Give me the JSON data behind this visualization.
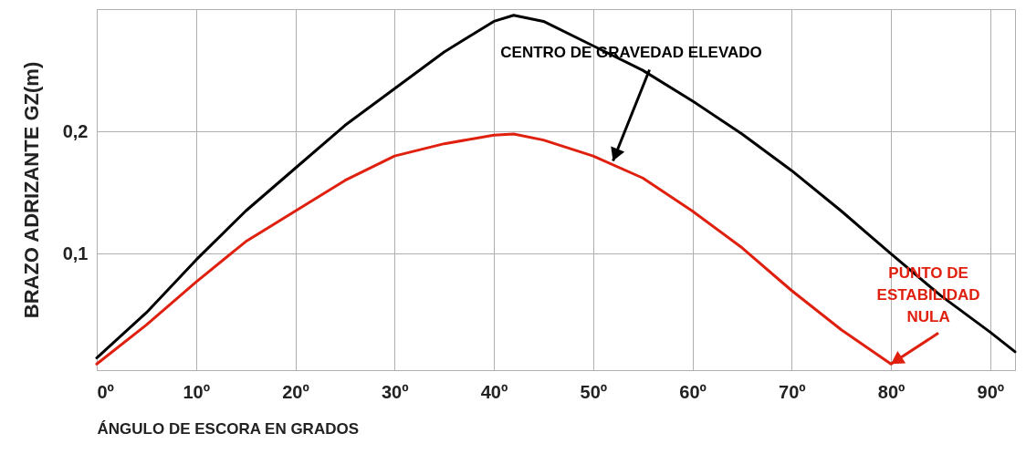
{
  "chart_data": {
    "type": "line",
    "xlabel": "ÁNGULO DE ESCORA EN GRADOS",
    "ylabel": "BRAZO ADRIZANTE GZ(m)",
    "xlim": [
      0,
      92.5
    ],
    "ylim": [
      0.005,
      0.3
    ],
    "xticks": [
      {
        "value": 0,
        "label": "0º"
      },
      {
        "value": 10,
        "label": "10º"
      },
      {
        "value": 20,
        "label": "20º"
      },
      {
        "value": 30,
        "label": "30º"
      },
      {
        "value": 40,
        "label": "40º"
      },
      {
        "value": 50,
        "label": "50º"
      },
      {
        "value": 60,
        "label": "60º"
      },
      {
        "value": 70,
        "label": "70º"
      },
      {
        "value": 80,
        "label": "80º"
      },
      {
        "value": 90,
        "label": "90º"
      }
    ],
    "yticks": [
      {
        "value": 0.1,
        "label": "0,1"
      },
      {
        "value": 0.2,
        "label": "0,2"
      }
    ],
    "grid": true,
    "marker": "none",
    "line_style": "solid",
    "series": [
      {
        "color": "#000000",
        "x": [
          0,
          5,
          10,
          15,
          20,
          25,
          30,
          35,
          40,
          42,
          45,
          50,
          55,
          60,
          65,
          70,
          75,
          80,
          85,
          90,
          92.5
        ],
        "values": [
          0.015,
          0.052,
          0.095,
          0.135,
          0.17,
          0.205,
          0.235,
          0.265,
          0.29,
          0.295,
          0.29,
          0.27,
          0.25,
          0.225,
          0.198,
          0.168,
          0.135,
          0.1,
          0.066,
          0.036,
          0.02
        ]
      },
      {
        "color": "#e0200f",
        "x": [
          0,
          5,
          10,
          15,
          20,
          25,
          30,
          35,
          40,
          42,
          45,
          50,
          55,
          60,
          65,
          70,
          75,
          80
        ],
        "values": [
          0.01,
          0.042,
          0.077,
          0.11,
          0.135,
          0.16,
          0.18,
          0.19,
          0.197,
          0.198,
          0.193,
          0.18,
          0.162,
          0.135,
          0.105,
          0.07,
          0.038,
          0.01
        ]
      }
    ],
    "annotations": [
      {
        "text": "CENTRO DE GRAVEDAD ELEVADO",
        "x": 52,
        "y": 0.176
      },
      {
        "text": "PUNTO DE\nESTABILIDAD\nNULA",
        "x": 80,
        "y": 0.01
      }
    ]
  }
}
